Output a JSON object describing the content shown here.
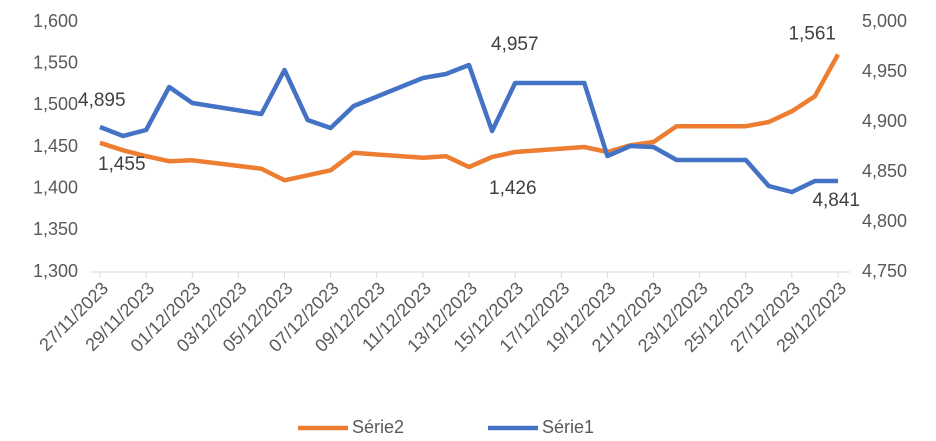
{
  "chart_data": {
    "type": "line",
    "x": [
      "27/11/2023",
      "28/11/2023",
      "29/11/2023",
      "30/11/2023",
      "01/12/2023",
      "04/12/2023",
      "05/12/2023",
      "06/12/2023",
      "07/12/2023",
      "08/12/2023",
      "11/12/2023",
      "12/12/2023",
      "13/12/2023",
      "14/12/2023",
      "15/12/2023",
      "18/12/2023",
      "19/12/2023",
      "20/12/2023",
      "21/12/2023",
      "22/12/2023",
      "25/12/2023",
      "26/12/2023",
      "27/12/2023",
      "28/12/2023",
      "29/12/2023"
    ],
    "series": [
      {
        "name": "Série2",
        "color": "#ed7d31",
        "axis": "y",
        "values": [
          1455,
          1446,
          1439,
          1433,
          1434,
          1424,
          1410,
          1416,
          1422,
          1443,
          1437,
          1439,
          1426,
          1438,
          1444,
          1450,
          1444,
          1452,
          1456,
          1475,
          1475,
          1480,
          1493,
          1511,
          1561
        ],
        "value_labels": [
          "1,455",
          null,
          null,
          null,
          null,
          null,
          null,
          null,
          null,
          null,
          null,
          null,
          "1,426",
          null,
          null,
          null,
          null,
          null,
          null,
          null,
          null,
          null,
          null,
          null,
          "1,561"
        ]
      },
      {
        "name": "Série1",
        "color": "#4472c4",
        "axis": "y2",
        "values": [
          4895,
          4886,
          4892,
          4935,
          4919,
          4908,
          4952,
          4902,
          4894,
          4916,
          4944,
          4948,
          4957,
          4891,
          4939,
          4939,
          4866,
          4876,
          4875,
          4862,
          4862,
          4836,
          4830,
          4841,
          4841
        ],
        "value_labels": [
          "4,895",
          null,
          null,
          null,
          null,
          null,
          null,
          null,
          null,
          null,
          null,
          null,
          "4,957",
          null,
          null,
          null,
          null,
          null,
          null,
          null,
          null,
          null,
          null,
          null,
          "4,841"
        ]
      }
    ],
    "xlim": [
      "27/11/2023",
      "29/12/2023"
    ],
    "xticks": [
      "27/11/2023",
      "29/11/2023",
      "01/12/2023",
      "03/12/2023",
      "05/12/2023",
      "07/12/2023",
      "09/12/2023",
      "11/12/2023",
      "13/12/2023",
      "15/12/2023",
      "17/12/2023",
      "19/12/2023",
      "21/12/2023",
      "23/12/2023",
      "25/12/2023",
      "27/12/2023",
      "29/12/2023"
    ],
    "ylim": [
      1300,
      1600
    ],
    "yticks": [
      {
        "value": 1300,
        "label": "1,300"
      },
      {
        "value": 1350,
        "label": "1,350"
      },
      {
        "value": 1400,
        "label": "1,400"
      },
      {
        "value": 1450,
        "label": "1,450"
      },
      {
        "value": 1500,
        "label": "1,500"
      },
      {
        "value": 1550,
        "label": "1,550"
      },
      {
        "value": 1600,
        "label": "1,600"
      }
    ],
    "y2lim": [
      4750,
      5000
    ],
    "y2ticks": [
      {
        "value": 4750,
        "label": "4,750"
      },
      {
        "value": 4800,
        "label": "4,800"
      },
      {
        "value": 4850,
        "label": "4,850"
      },
      {
        "value": 4900,
        "label": "4,900"
      },
      {
        "value": 4950,
        "label": "4,950"
      },
      {
        "value": 5000,
        "label": "5,000"
      }
    ],
    "legend": "bottom"
  }
}
